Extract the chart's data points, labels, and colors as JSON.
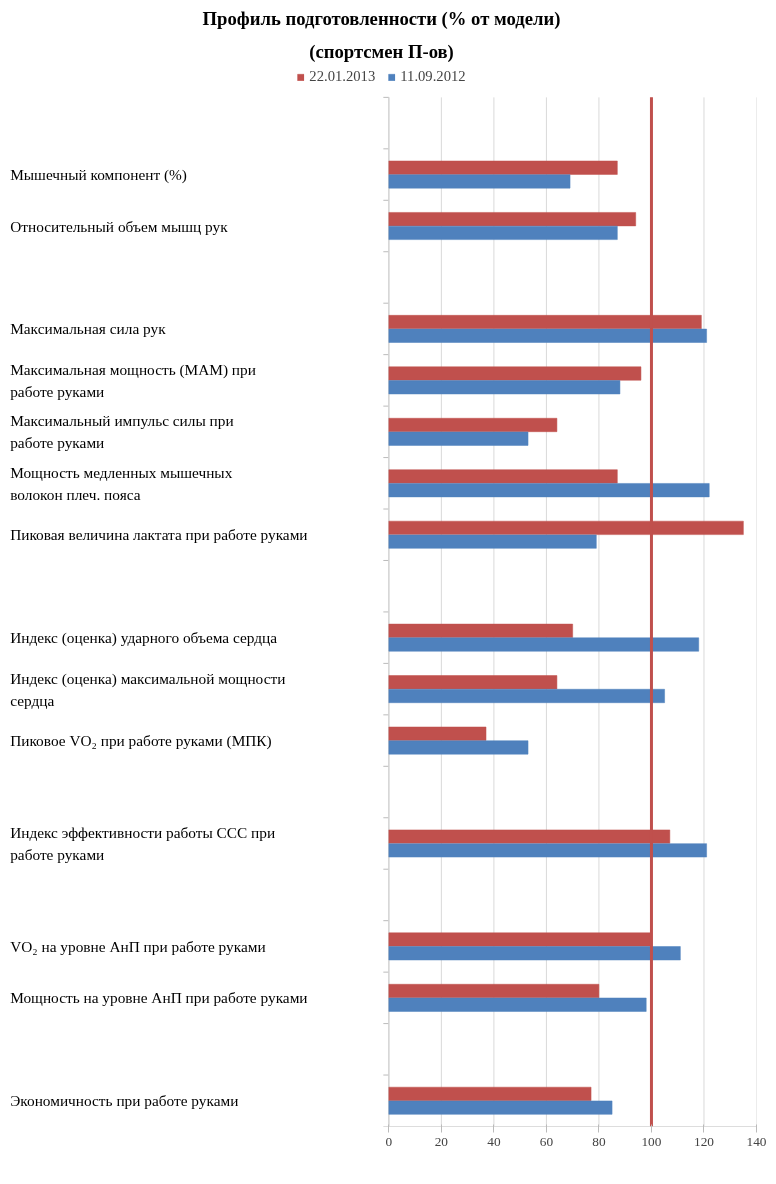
{
  "chart_data": {
    "type": "bar",
    "orientation": "horizontal",
    "title": "Профиль подготовленности (% от модели)",
    "subtitle": "(спортсмен П-ов)",
    "categories": [
      null,
      "Мышечный компонент (%)",
      "Относительный объем мышц рук",
      null,
      "Максимальная сила рук",
      "Максимальная мощность (МАМ) при\nработе руками",
      "Максимальный импульс силы при\nработе руками",
      "Мощность медленных мышечных\nволокон плеч. пояса",
      "Пиковая величина лактата при работе руками",
      null,
      "Индекс (оценка) ударного объема сердца",
      "Индекс (оценка) максимальной мощности\nсердца",
      "Пиковое VO₂ при работе руками (МПК)",
      null,
      "Индекс эффективности работы ССС при\nработе руками",
      null,
      "VO₂ на уровне АнП при работе руками",
      "Мощность на уровне АнП при работе руками",
      null,
      "Экономичность при работе руками"
    ],
    "series": [
      {
        "name": "22.01.2013",
        "color": "#c0504d",
        "values": [
          null,
          87,
          94,
          null,
          119,
          96,
          64,
          87,
          135,
          null,
          70,
          64,
          37,
          null,
          107,
          null,
          100,
          80,
          null,
          77
        ]
      },
      {
        "name": "11.09.2012",
        "color": "#4f81bd",
        "values": [
          null,
          69,
          87,
          null,
          121,
          88,
          53,
          122,
          79,
          null,
          118,
          105,
          53,
          null,
          121,
          null,
          111,
          98,
          null,
          85
        ]
      }
    ],
    "xlim": [
      0,
      140
    ],
    "xticks": [
      0,
      20,
      40,
      60,
      80,
      100,
      120,
      140
    ],
    "grid": "x",
    "legend": "top",
    "ref_lines": [
      {
        "axis": "x",
        "value": 100,
        "color": "#c0504d"
      }
    ]
  }
}
